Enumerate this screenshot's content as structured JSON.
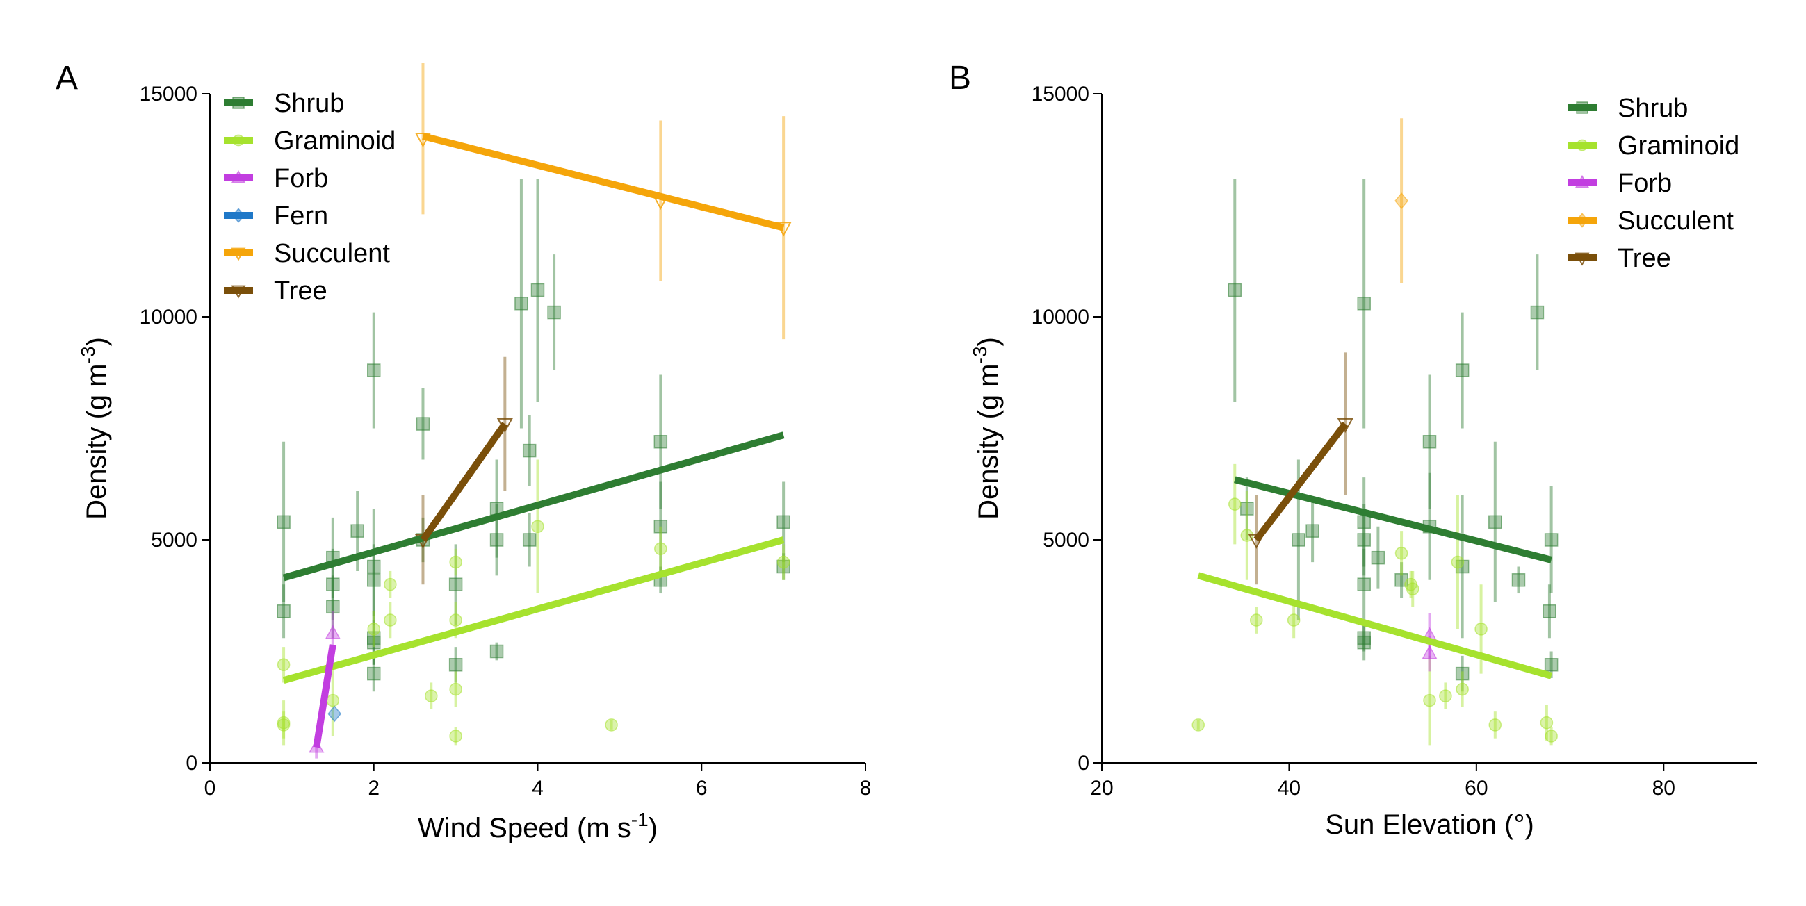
{
  "colors": {
    "Shrub": "#2e7d32",
    "Graminoid": "#a6e22e",
    "Forb": "#c23ee0",
    "Fern": "#1f78c8",
    "Succulent": "#f5a50a",
    "Tree": "#7a4f0a"
  },
  "chart_data": [
    {
      "type": "scatter",
      "panel_label": "A",
      "xlabel_prefix": "Wind Speed (m s",
      "xlabel_sup": "-1",
      "xlabel_suffix": ")",
      "ylabel_prefix": "Density (g m",
      "ylabel_sup": "-3",
      "ylabel_suffix": ")",
      "xlim": [
        0,
        8
      ],
      "ylim": [
        0,
        15000
      ],
      "xticks": [
        0,
        2,
        4,
        6,
        8
      ],
      "yticks": [
        0,
        5000,
        10000,
        15000
      ],
      "grid": false,
      "legend_position": "top-left",
      "legend": [
        "Shrub",
        "Graminoid",
        "Forb",
        "Fern",
        "Succulent",
        "Tree"
      ],
      "series": [
        {
          "name": "Shrub",
          "marker": "square",
          "points": [
            [
              0.9,
              5400,
              1800
            ],
            [
              0.9,
              3400,
              600
            ],
            [
              1.5,
              4600,
              900
            ],
            [
              1.5,
              4000,
              800
            ],
            [
              1.5,
              3500,
              700
            ],
            [
              1.8,
              5200,
              900
            ],
            [
              2.0,
              8800,
              1300
            ],
            [
              2.0,
              4400,
              1300
            ],
            [
              2.0,
              4100,
              800
            ],
            [
              2.0,
              2800,
              600
            ],
            [
              2.0,
              2700,
              500
            ],
            [
              2.0,
              2000,
              400
            ],
            [
              2.6,
              7600,
              800
            ],
            [
              2.6,
              5000,
              500
            ],
            [
              3.0,
              4000,
              900
            ],
            [
              3.0,
              2200,
              400
            ],
            [
              3.5,
              5700,
              1100
            ],
            [
              3.5,
              5000,
              800
            ],
            [
              3.5,
              2500,
              200
            ],
            [
              3.8,
              10300,
              2800
            ],
            [
              3.9,
              7000,
              800
            ],
            [
              3.9,
              5000,
              600
            ],
            [
              4.0,
              10600,
              2500
            ],
            [
              4.2,
              10100,
              1300
            ],
            [
              5.5,
              7200,
              1500
            ],
            [
              5.5,
              5300,
              1000
            ],
            [
              5.5,
              4100,
              300
            ],
            [
              7.0,
              5400,
              900
            ],
            [
              7.0,
              4400,
              300
            ]
          ],
          "fit": [
            [
              0.9,
              4150
            ],
            [
              7.0,
              7350
            ]
          ]
        },
        {
          "name": "Graminoid",
          "marker": "circle",
          "points": [
            [
              0.9,
              2200,
              400
            ],
            [
              0.9,
              900,
              500
            ],
            [
              0.9,
              850,
              300
            ],
            [
              1.5,
              1400,
              800
            ],
            [
              2.0,
              3000,
              400
            ],
            [
              2.2,
              4000,
              300
            ],
            [
              2.2,
              3200,
              400
            ],
            [
              2.7,
              1500,
              300
            ],
            [
              3.0,
              4500,
              300
            ],
            [
              3.0,
              3200,
              400
            ],
            [
              3.0,
              1650,
              400
            ],
            [
              3.0,
              600,
              200
            ],
            [
              4.0,
              5300,
              1500
            ],
            [
              4.9,
              850,
              100
            ],
            [
              5.5,
              4800,
              500
            ],
            [
              7.0,
              4500,
              400
            ]
          ],
          "fit": [
            [
              0.9,
              1850
            ],
            [
              7.0,
              5000
            ]
          ]
        },
        {
          "name": "Forb",
          "marker": "triangle-up",
          "points": [
            [
              1.5,
              2900,
              500
            ],
            [
              1.3,
              350,
              250
            ]
          ],
          "fit": [
            [
              1.3,
              350
            ],
            [
              1.5,
              2650
            ]
          ]
        },
        {
          "name": "Fern",
          "marker": "diamond",
          "points": [
            [
              1.52,
              1100,
              0
            ]
          ],
          "fit": []
        },
        {
          "name": "Succulent",
          "marker": "triangle-down",
          "points": [
            [
              2.6,
              14000,
              1700
            ],
            [
              5.5,
              12600,
              1800
            ],
            [
              7.0,
              12000,
              2500
            ]
          ],
          "fit": [
            [
              2.6,
              14050
            ],
            [
              7.0,
              12000
            ]
          ]
        },
        {
          "name": "Tree",
          "marker": "triangle-down",
          "points": [
            [
              2.6,
              5000,
              1000
            ],
            [
              3.6,
              7600,
              1500
            ]
          ],
          "fit": [
            [
              2.6,
              5000
            ],
            [
              3.6,
              7600
            ]
          ]
        }
      ]
    },
    {
      "type": "scatter",
      "panel_label": "B",
      "xlabel_prefix": "Sun Elevation (°)",
      "xlabel_sup": "",
      "xlabel_suffix": "",
      "ylabel_prefix": "Density (g m",
      "ylabel_sup": "-3",
      "ylabel_suffix": ")",
      "xlim": [
        20,
        90
      ],
      "ylim": [
        0,
        15000
      ],
      "xticks": [
        20,
        40,
        60,
        80
      ],
      "yticks": [
        0,
        5000,
        10000,
        15000
      ],
      "grid": false,
      "legend_position": "top-right",
      "legend": [
        "Shrub",
        "Graminoid",
        "Forb",
        "Succulent",
        "Tree"
      ],
      "series": [
        {
          "name": "Shrub",
          "marker": "square",
          "points": [
            [
              34.2,
              10600,
              2500
            ],
            [
              35.5,
              5700,
              700
            ],
            [
              41,
              5000,
              1800
            ],
            [
              42.5,
              5200,
              700
            ],
            [
              48,
              10300,
              2800
            ],
            [
              48,
              5400,
              1000
            ],
            [
              48,
              5000,
              800
            ],
            [
              48,
              4000,
              800
            ],
            [
              48,
              2800,
              300
            ],
            [
              48,
              2700,
              400
            ],
            [
              49.5,
              4600,
              700
            ],
            [
              52,
              4100,
              400
            ],
            [
              55,
              7200,
              1500
            ],
            [
              55,
              5300,
              1200
            ],
            [
              58.5,
              8800,
              1300
            ],
            [
              58.5,
              4400,
              1600
            ],
            [
              58.5,
              2000,
              400
            ],
            [
              62,
              5400,
              1800
            ],
            [
              64.5,
              4100,
              300
            ],
            [
              66.5,
              10100,
              1300
            ],
            [
              67.8,
              3400,
              600
            ],
            [
              68,
              5000,
              1200
            ],
            [
              68,
              2200,
              300
            ]
          ],
          "fit": [
            [
              34.2,
              6350
            ],
            [
              68,
              4550
            ]
          ]
        },
        {
          "name": "Graminoid",
          "marker": "circle",
          "points": [
            [
              30.3,
              850,
              100
            ],
            [
              34.2,
              5800,
              900
            ],
            [
              35.5,
              5100,
              1000
            ],
            [
              36.5,
              3200,
              300
            ],
            [
              40.5,
              3200,
              400
            ],
            [
              52,
              4700,
              500
            ],
            [
              53,
              4000,
              300
            ],
            [
              53.2,
              3900,
              400
            ],
            [
              55,
              1400,
              1000
            ],
            [
              56.7,
              1500,
              300
            ],
            [
              58,
              4500,
              1500
            ],
            [
              58.5,
              1650,
              400
            ],
            [
              60.5,
              3000,
              1000
            ],
            [
              62,
              850,
              300
            ],
            [
              67.5,
              900,
              400
            ],
            [
              68,
              600,
              200
            ]
          ],
          "fit": [
            [
              30.3,
              4200
            ],
            [
              68,
              1950
            ]
          ]
        },
        {
          "name": "Forb",
          "marker": "triangle-up",
          "points": [
            [
              55,
              2850,
              500
            ],
            [
              55,
              2450,
              400
            ]
          ],
          "fit": []
        },
        {
          "name": "Succulent",
          "marker": "diamond",
          "points": [
            [
              52,
              12600,
              1850
            ]
          ],
          "fit": []
        },
        {
          "name": "Tree",
          "marker": "triangle-down",
          "points": [
            [
              36.5,
              5000,
              1000
            ],
            [
              46,
              7600,
              1600
            ]
          ],
          "fit": [
            [
              36.5,
              5000
            ],
            [
              46,
              7600
            ]
          ]
        }
      ]
    }
  ]
}
